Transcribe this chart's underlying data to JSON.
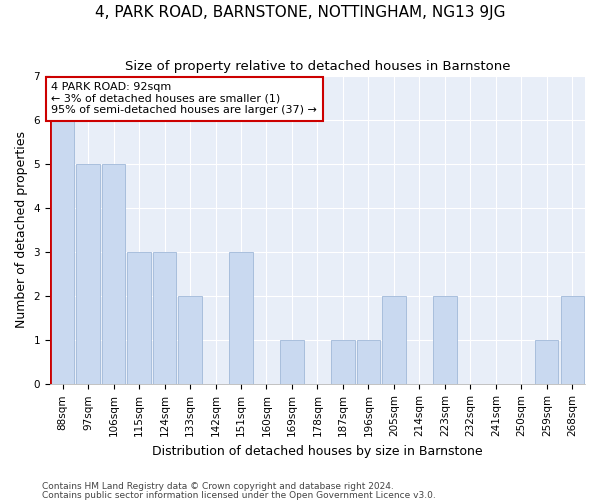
{
  "title": "4, PARK ROAD, BARNSTONE, NOTTINGHAM, NG13 9JG",
  "subtitle": "Size of property relative to detached houses in Barnstone",
  "xlabel": "Distribution of detached houses by size in Barnstone",
  "ylabel": "Number of detached properties",
  "categories": [
    "88sqm",
    "97sqm",
    "106sqm",
    "115sqm",
    "124sqm",
    "133sqm",
    "142sqm",
    "151sqm",
    "160sqm",
    "169sqm",
    "178sqm",
    "187sqm",
    "196sqm",
    "205sqm",
    "214sqm",
    "223sqm",
    "232sqm",
    "241sqm",
    "250sqm",
    "259sqm",
    "268sqm"
  ],
  "values": [
    6,
    5,
    5,
    3,
    3,
    2,
    0,
    3,
    0,
    1,
    0,
    1,
    1,
    2,
    0,
    2,
    0,
    0,
    0,
    1,
    2
  ],
  "bar_color": "#c9d9f0",
  "bar_edge_color": "#a0b8d8",
  "highlight_color": "#cc0000",
  "annotation_text": "4 PARK ROAD: 92sqm\n← 3% of detached houses are smaller (1)\n95% of semi-detached houses are larger (37) →",
  "annotation_box_color": "#cc0000",
  "ylim": [
    0,
    7
  ],
  "yticks": [
    0,
    1,
    2,
    3,
    4,
    5,
    6,
    7
  ],
  "footnote1": "Contains HM Land Registry data © Crown copyright and database right 2024.",
  "footnote2": "Contains public sector information licensed under the Open Government Licence v3.0.",
  "background_color": "#e8eef8",
  "grid_color": "#ffffff",
  "title_fontsize": 11,
  "subtitle_fontsize": 9.5,
  "xlabel_fontsize": 9,
  "ylabel_fontsize": 9,
  "tick_fontsize": 7.5,
  "annotation_fontsize": 8,
  "footnote_fontsize": 6.5
}
